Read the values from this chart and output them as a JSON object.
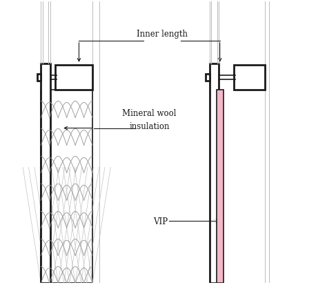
{
  "fig_width": 4.74,
  "fig_height": 4.14,
  "dpi": 100,
  "bg_color": "#ffffff",
  "dark_color": "#1a1a1a",
  "gray_color": "#999999",
  "light_gray": "#bbbbbb",
  "pink_color": "#f4b8c8",
  "label_inner_length": "Inner length",
  "label_mineral_wool": "Mineral wool\ninsulation",
  "label_vip": "VIP",
  "label_fontsize": 8.5
}
